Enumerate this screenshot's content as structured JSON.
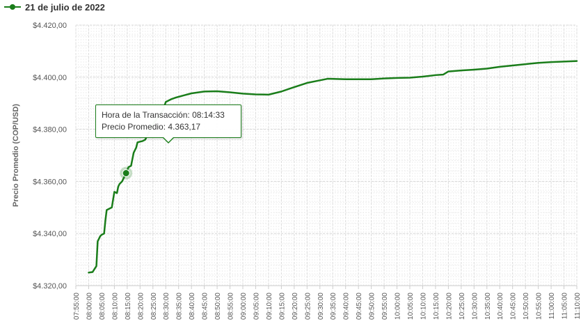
{
  "legend": {
    "label": "21 de julio de 2022",
    "color": "#1a7d1a"
  },
  "tooltip": {
    "line1_label": "Hora de la Transacción:",
    "line1_value": "08:14:33",
    "line2_label": "Precio Promedio:",
    "line2_value": "4.363,17"
  },
  "chart_data": {
    "type": "line",
    "title": "",
    "xlabel": "",
    "ylabel": "Precio Promedio (COP/USD)",
    "ylim": [
      4320,
      4420
    ],
    "xlim": [
      "07:55:00",
      "11:10:00"
    ],
    "yticks": [
      "$4.320,00",
      "$4.340,00",
      "$4.360,00",
      "$4.380,00",
      "$4.400,00",
      "$4.420,00"
    ],
    "ytick_values": [
      4320,
      4340,
      4360,
      4380,
      4400,
      4420
    ],
    "xticks": [
      "07:55:00",
      "08:00:00",
      "08:05:00",
      "08:10:00",
      "08:15:00",
      "08:20:00",
      "08:25:00",
      "08:30:00",
      "08:35:00",
      "08:40:00",
      "08:45:00",
      "08:50:00",
      "08:55:00",
      "09:00:00",
      "09:05:00",
      "09:10:00",
      "09:15:00",
      "09:20:00",
      "09:25:00",
      "09:30:00",
      "09:35:00",
      "09:40:00",
      "09:45:00",
      "09:50:00",
      "09:55:00",
      "10:00:00",
      "10:05:00",
      "10:10:00",
      "10:15:00",
      "10:20:00",
      "10:25:00",
      "10:30:00",
      "10:35:00",
      "10:40:00",
      "10:45:00",
      "10:50:00",
      "10:55:00",
      "11:00:00",
      "11:05:00",
      "11:10:00"
    ],
    "grid": true,
    "legend_position": "top-left",
    "series": [
      {
        "name": "21 de julio de 2022",
        "color": "#1a7d1a",
        "highlight": {
          "time": "08:14:33",
          "value": 4363.17
        },
        "points": [
          [
            "08:00:00",
            4325.0
          ],
          [
            "08:01:30",
            4325.2
          ],
          [
            "08:03:00",
            4327.5
          ],
          [
            "08:03:30",
            4337.0
          ],
          [
            "08:04:30",
            4339.0
          ],
          [
            "08:05:00",
            4339.5
          ],
          [
            "08:06:00",
            4340.0
          ],
          [
            "08:06:30",
            4345.0
          ],
          [
            "08:07:00",
            4349.0
          ],
          [
            "08:08:00",
            4349.5
          ],
          [
            "08:09:00",
            4350.0
          ],
          [
            "08:09:30",
            4353.0
          ],
          [
            "08:10:00",
            4356.0
          ],
          [
            "08:11:00",
            4355.5
          ],
          [
            "08:11:30",
            4358.0
          ],
          [
            "08:12:00",
            4359.0
          ],
          [
            "08:13:00",
            4360.0
          ],
          [
            "08:14:33",
            4363.17
          ],
          [
            "08:15:30",
            4365.5
          ],
          [
            "08:16:30",
            4366.0
          ],
          [
            "08:17:30",
            4371.0
          ],
          [
            "08:18:30",
            4373.0
          ],
          [
            "08:19:00",
            4375.0
          ],
          [
            "08:21:00",
            4375.5
          ],
          [
            "08:22:00",
            4376.0
          ],
          [
            "08:23:00",
            4378.0
          ],
          [
            "08:25:00",
            4382.0
          ],
          [
            "08:27:00",
            4384.5
          ],
          [
            "08:29:00",
            4387.5
          ],
          [
            "08:30:00",
            4390.5
          ],
          [
            "08:32:00",
            4391.5
          ],
          [
            "08:34:00",
            4392.2
          ],
          [
            "08:37:00",
            4393.0
          ],
          [
            "08:40:00",
            4393.8
          ],
          [
            "08:45:00",
            4394.5
          ],
          [
            "08:50:00",
            4394.6
          ],
          [
            "08:55:00",
            4394.2
          ],
          [
            "09:00:00",
            4393.7
          ],
          [
            "09:05:00",
            4393.4
          ],
          [
            "09:10:00",
            4393.3
          ],
          [
            "09:15:00",
            4394.5
          ],
          [
            "09:20:00",
            4396.2
          ],
          [
            "09:25:00",
            4397.8
          ],
          [
            "09:30:00",
            4398.8
          ],
          [
            "09:33:00",
            4399.4
          ],
          [
            "09:40:00",
            4399.2
          ],
          [
            "09:45:00",
            4399.2
          ],
          [
            "09:50:00",
            4399.2
          ],
          [
            "09:55:00",
            4399.5
          ],
          [
            "10:00:00",
            4399.7
          ],
          [
            "10:05:00",
            4399.8
          ],
          [
            "10:10:00",
            4400.2
          ],
          [
            "10:15:00",
            4400.8
          ],
          [
            "10:18:00",
            4401.0
          ],
          [
            "10:20:00",
            4402.2
          ],
          [
            "10:25:00",
            4402.6
          ],
          [
            "10:30:00",
            4402.9
          ],
          [
            "10:35:00",
            4403.3
          ],
          [
            "10:40:00",
            4404.0
          ],
          [
            "10:45:00",
            4404.5
          ],
          [
            "10:50:00",
            4405.0
          ],
          [
            "10:55:00",
            4405.5
          ],
          [
            "11:00:00",
            4405.8
          ],
          [
            "11:05:00",
            4406.0
          ],
          [
            "11:10:00",
            4406.2
          ]
        ]
      }
    ]
  }
}
